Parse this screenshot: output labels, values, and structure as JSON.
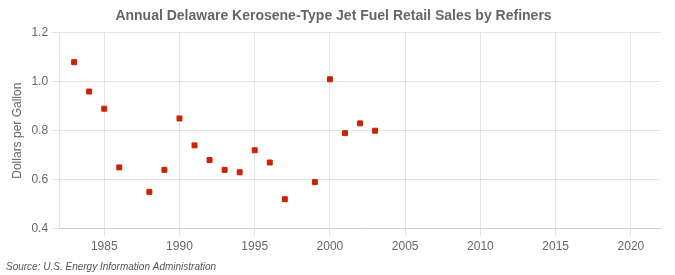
{
  "chart_data": {
    "type": "scatter",
    "title": "Annual Delaware Kerosene-Type Jet Fuel Retail Sales by Refiners",
    "ylabel": "Dollars per Gallon",
    "annotation": "Source: U.S. Energy Information Administration",
    "x": [
      1983,
      1984,
      1985,
      1986,
      1988,
      1989,
      1990,
      1991,
      1992,
      1993,
      1994,
      1995,
      1996,
      1997,
      1999,
      2000,
      2001,
      2002,
      2003
    ],
    "values": [
      1.08,
      0.96,
      0.89,
      0.65,
      0.55,
      0.64,
      0.85,
      0.74,
      0.68,
      0.64,
      0.63,
      0.72,
      0.67,
      0.52,
      0.59,
      1.01,
      0.79,
      0.83,
      0.8
    ],
    "color": "#cc2200",
    "marker": "square",
    "xlim": [
      1982,
      2022
    ],
    "ylim": [
      0.4,
      1.2
    ],
    "xticks": [
      1985,
      1990,
      1995,
      2000,
      2005,
      2010,
      2015,
      2020
    ],
    "yticks": [
      0.4,
      0.6,
      0.8,
      {
        "value": 1.0,
        "label": "1.0"
      },
      1.2
    ],
    "grid": true
  }
}
